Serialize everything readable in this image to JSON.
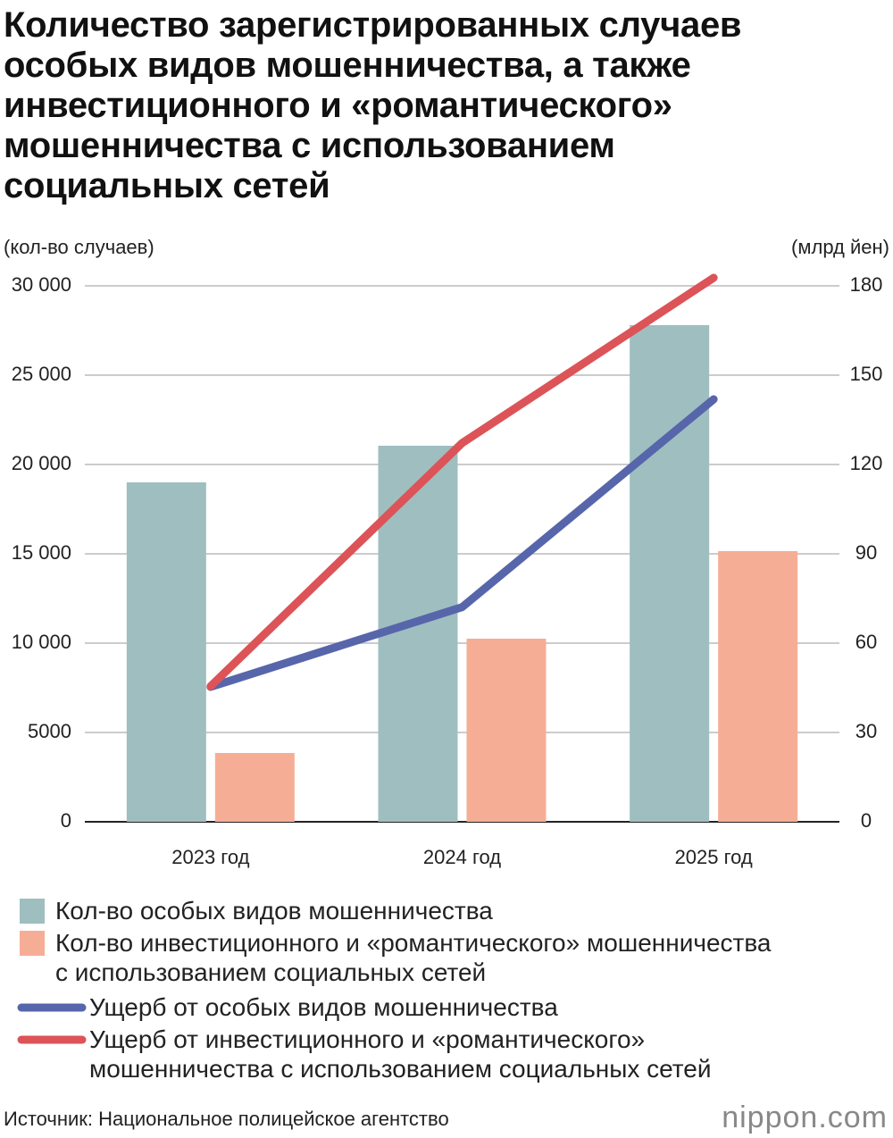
{
  "chart_data": {
    "type": "bar_line",
    "title": "Количество зарегистрированных случаев\nособых видов мошенничества, а также\nинвестиционного и «романтического»\nмошенничества с использованием\nсоциальных сетей",
    "y_label": "(кол-во случаев)",
    "y2_label": "(млрд йен)",
    "categories": [
      "2023 год",
      "2024 год",
      "2025 год"
    ],
    "ylim": [
      0,
      30000
    ],
    "yticks": [
      0,
      5000,
      {
        "value": 10000,
        "label": "10 000"
      },
      {
        "value": 15000,
        "label": "15 000"
      },
      {
        "value": 20000,
        "label": "20 000"
      },
      {
        "value": 25000,
        "label": "25 000"
      },
      {
        "value": 30000,
        "label": "30 000"
      }
    ],
    "y2lim": [
      0,
      180
    ],
    "y2ticks": [
      0,
      30,
      60,
      90,
      120,
      150,
      180
    ],
    "grid": true,
    "series": [
      {
        "name": "Кол-во особых видов мошенничества",
        "type": "bar",
        "color": "#9fbec0",
        "values": [
          19000,
          21050,
          27800
        ]
      },
      {
        "name": "Кол-во инвестиционного и «романтического» мошенничества\nс использованием социальных сетей",
        "type": "bar",
        "color": "#f5ae95",
        "values": [
          3850,
          10250,
          15150
        ]
      },
      {
        "name": "Ущерб от особых видов мошенничества",
        "type": "line",
        "axis": "y2",
        "color": "#5766ab",
        "values": [
          45.3,
          72.1,
          141.9
        ]
      },
      {
        "name": "Ущерб от инвестиционного и «романтического»\nмошенничества с использованием социальных сетей",
        "type": "line",
        "axis": "y2",
        "color": "#dc5358",
        "values": [
          45.5,
          127.2,
          182.7
        ]
      }
    ],
    "source": "Источник: Национальное полицейское агентство",
    "logo": "nippon.com"
  }
}
